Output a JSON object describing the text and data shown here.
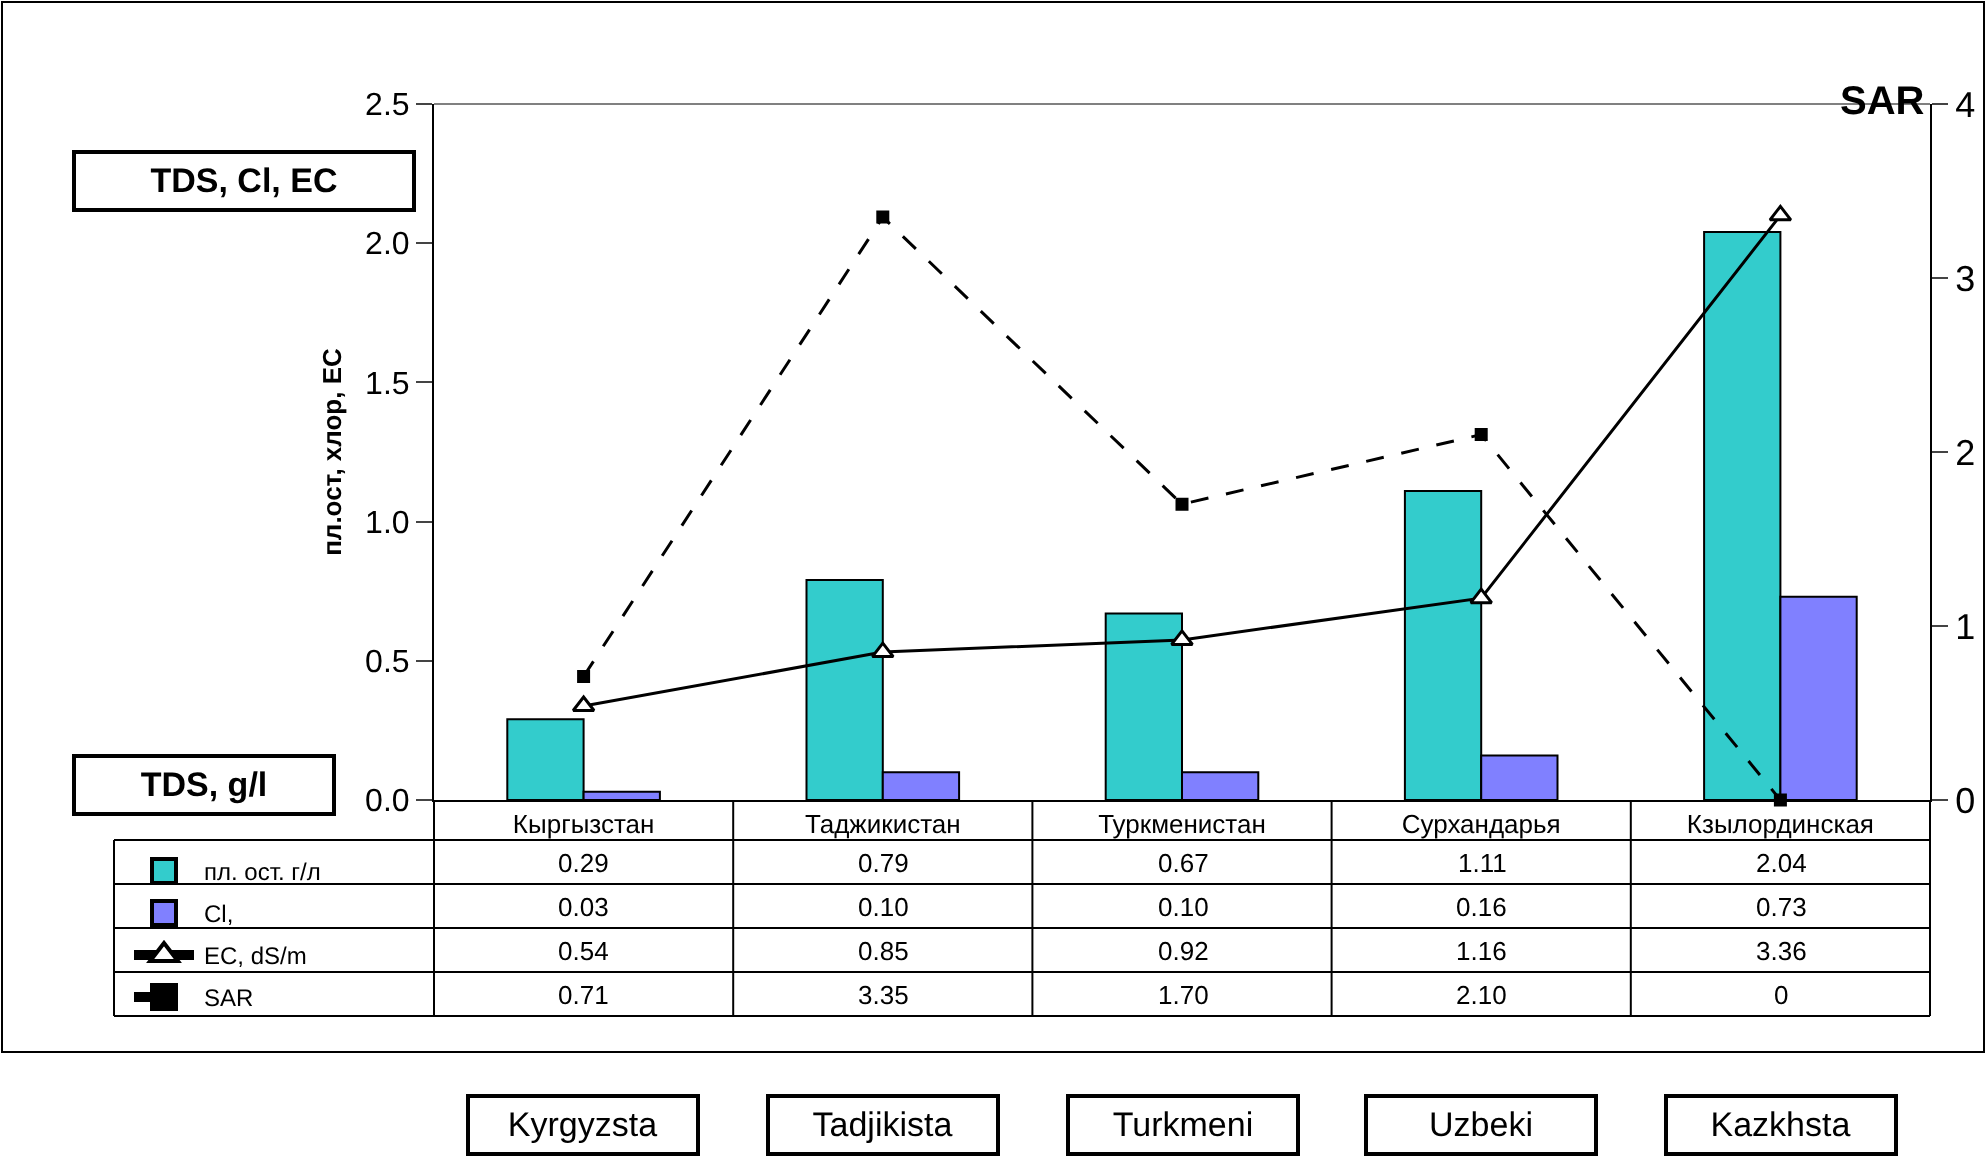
{
  "chart_data": {
    "type": "bar",
    "y2label": "SAR",
    "ylabel": "пл.ост, хлор, EC",
    "categories": [
      "Кыргызстан",
      "Таджикистан",
      "Туркменистан",
      "Сурхандарья",
      "Кзылординская"
    ],
    "series": [
      {
        "name": "пл. ост. г/л",
        "color": "#33cccc",
        "values": [
          0.29,
          0.79,
          0.67,
          1.11,
          2.04
        ],
        "value_labels": [
          "0.29",
          "0.79",
          "0.67",
          "1.11",
          "2.04"
        ]
      },
      {
        "name": "Cl,",
        "color": "#8080ff",
        "values": [
          0.03,
          0.1,
          0.1,
          0.16,
          0.73
        ],
        "value_labels": [
          "0.03",
          "0.10",
          "0.10",
          "0.16",
          "0.73"
        ]
      },
      {
        "name": "EC, dS/m",
        "type": "line",
        "axis": "y2",
        "color": "#000000",
        "marker": "triangle",
        "line_style": "solid",
        "values": [
          0.54,
          0.85,
          0.92,
          1.16,
          3.36
        ],
        "value_labels": [
          "0.54",
          "0.85",
          "0.92",
          "1.16",
          "3.36"
        ]
      },
      {
        "name": "SAR",
        "type": "line",
        "axis": "y2",
        "color": "#000000",
        "marker": "square",
        "line_style": "dashed",
        "values": [
          0.71,
          3.35,
          1.7,
          2.1,
          0
        ],
        "value_labels": [
          "0.71",
          "3.35",
          "1.70",
          "2.10",
          "0"
        ]
      }
    ],
    "ylim": [
      0,
      2.5
    ],
    "yticks": [
      {
        "value": 0,
        "label": "0.0"
      },
      {
        "value": 0.5,
        "label": "0.5"
      },
      {
        "value": 1,
        "label": "1.0"
      },
      {
        "value": 1.5,
        "label": "1.5"
      },
      {
        "value": 2,
        "label": "2.0"
      },
      {
        "value": 2.5,
        "label": "2.5"
      }
    ],
    "y2lim": [
      0,
      4
    ],
    "y2ticks": [
      0,
      1,
      2,
      3,
      4
    ],
    "legend": "bottom left",
    "annotations": [
      "TDS, Cl, EC",
      "TDS, g/l",
      "Kyrgyzsta",
      "Tadjikista",
      "Turkmeni",
      "Uzbeki",
      "Kazkhsta"
    ]
  }
}
